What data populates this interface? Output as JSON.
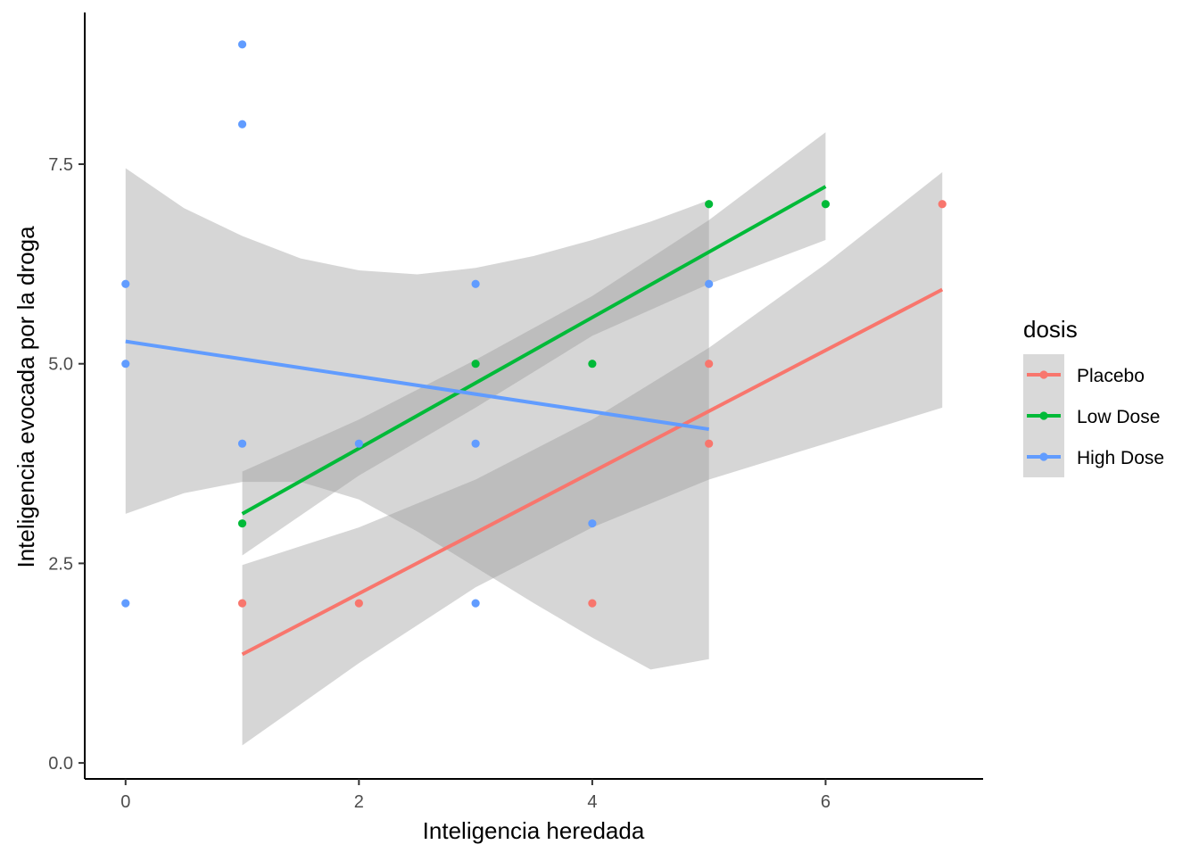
{
  "chart_data": {
    "type": "scatter",
    "xlabel": "Inteligencia heredada",
    "ylabel": "Inteligencia evocada por la droga",
    "xlim": [
      -0.35,
      7.35
    ],
    "ylim": [
      -0.2,
      9.4
    ],
    "x_ticks": [
      0,
      2,
      4,
      6
    ],
    "x_tick_labels": [
      "0",
      "2",
      "4",
      "6"
    ],
    "y_ticks": [
      0,
      2.5,
      5,
      7.5
    ],
    "y_tick_labels": [
      "0.0",
      "2.5",
      "5.0",
      "7.5"
    ],
    "grid": false,
    "legend": {
      "title": "dosis",
      "position": "right"
    },
    "series": [
      {
        "name": "Placebo",
        "color": "#F8766D",
        "points": [
          [
            1,
            2
          ],
          [
            2,
            2
          ],
          [
            4,
            2
          ],
          [
            5,
            4
          ],
          [
            5,
            5
          ],
          [
            7,
            7
          ]
        ],
        "fit": [
          [
            1,
            1.36
          ],
          [
            7,
            5.93
          ]
        ],
        "ci_upper": [
          [
            1,
            2.48
          ],
          [
            2,
            2.95
          ],
          [
            3,
            3.55
          ],
          [
            4,
            4.3
          ],
          [
            5,
            5.2
          ],
          [
            6,
            6.25
          ],
          [
            7,
            7.4
          ]
        ],
        "ci_lower": [
          [
            1,
            0.22
          ],
          [
            2,
            1.25
          ],
          [
            3,
            2.2
          ],
          [
            4,
            2.95
          ],
          [
            5,
            3.55
          ],
          [
            6,
            4.0
          ],
          [
            7,
            4.45
          ]
        ]
      },
      {
        "name": "Low Dose",
        "color": "#00BA38",
        "points": [
          [
            1,
            3
          ],
          [
            3,
            5
          ],
          [
            4,
            5
          ],
          [
            5,
            7
          ],
          [
            6,
            7
          ]
        ],
        "fit": [
          [
            1,
            3.12
          ],
          [
            6,
            7.22
          ]
        ],
        "ci_upper": [
          [
            1,
            3.65
          ],
          [
            2,
            4.3
          ],
          [
            3,
            5.05
          ],
          [
            4,
            5.85
          ],
          [
            5,
            6.8
          ],
          [
            6,
            7.9
          ]
        ],
        "ci_lower": [
          [
            1,
            2.6
          ],
          [
            2,
            3.6
          ],
          [
            3,
            4.45
          ],
          [
            4,
            5.35
          ],
          [
            5,
            6.0
          ],
          [
            6,
            6.55
          ]
        ]
      },
      {
        "name": "High Dose",
        "color": "#619CFF",
        "points": [
          [
            0,
            2
          ],
          [
            0,
            5
          ],
          [
            0,
            6
          ],
          [
            1,
            4
          ],
          [
            1,
            8
          ],
          [
            1,
            9
          ],
          [
            2,
            4
          ],
          [
            3,
            2
          ],
          [
            3,
            4
          ],
          [
            3,
            6
          ],
          [
            4,
            3
          ],
          [
            5,
            6
          ]
        ],
        "fit": [
          [
            0,
            5.28
          ],
          [
            5,
            4.18
          ]
        ],
        "ci_upper": [
          [
            0,
            7.45
          ],
          [
            0.5,
            6.95
          ],
          [
            1,
            6.6
          ],
          [
            1.5,
            6.32
          ],
          [
            2,
            6.17
          ],
          [
            2.5,
            6.12
          ],
          [
            3,
            6.2
          ],
          [
            3.5,
            6.35
          ],
          [
            4,
            6.55
          ],
          [
            4.5,
            6.78
          ],
          [
            5,
            7.05
          ]
        ],
        "ci_lower": [
          [
            0,
            3.12
          ],
          [
            0.5,
            3.38
          ],
          [
            1,
            3.52
          ],
          [
            1.5,
            3.52
          ],
          [
            2,
            3.3
          ],
          [
            2.5,
            2.9
          ],
          [
            3,
            2.45
          ],
          [
            3.5,
            2.0
          ],
          [
            4,
            1.57
          ],
          [
            4.5,
            1.17
          ],
          [
            5,
            1.3
          ]
        ]
      }
    ]
  }
}
